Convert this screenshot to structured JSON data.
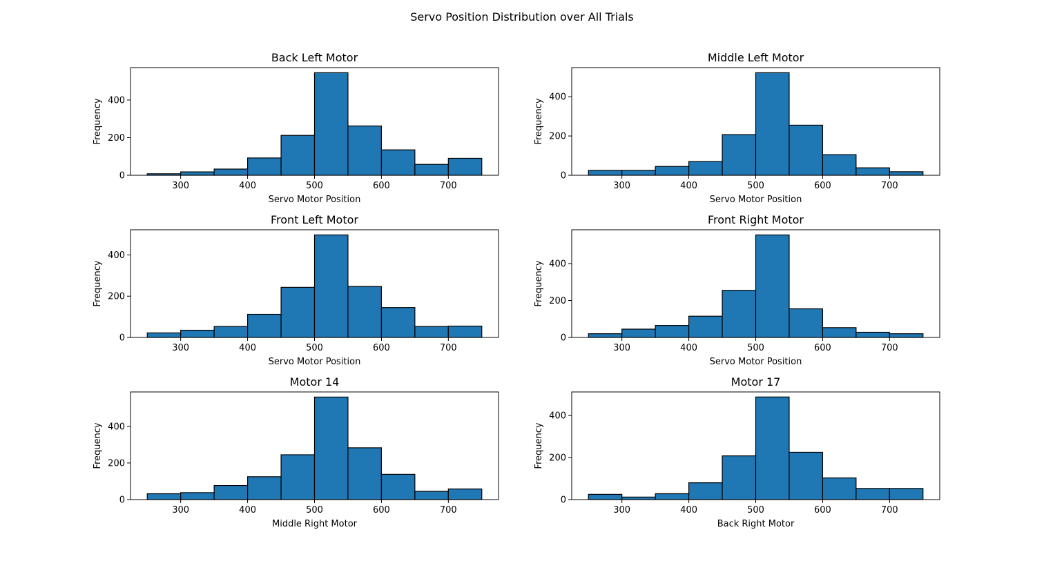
{
  "figure": {
    "title": "Servo Position Distribution over All Trials"
  },
  "chart_data": [
    {
      "type": "bar",
      "title": "Back Left Motor",
      "xlabel": "Servo Motor Position",
      "ylabel": "Frequency",
      "bin_edges": [
        250,
        300,
        350,
        400,
        450,
        500,
        550,
        600,
        650,
        700,
        750
      ],
      "values": [
        8,
        18,
        33,
        92,
        212,
        545,
        262,
        135,
        58,
        90
      ],
      "xlim": [
        225,
        775
      ],
      "ylim": [
        0,
        572
      ],
      "xticks": [
        300,
        400,
        500,
        600,
        700
      ],
      "yticks": [
        0,
        200,
        400
      ],
      "color": "#1f77b4",
      "edgecolor": "#000000"
    },
    {
      "type": "bar",
      "title": "Middle Left Motor",
      "xlabel": "Servo Motor Position",
      "ylabel": "Frequency",
      "bin_edges": [
        250,
        300,
        350,
        400,
        450,
        500,
        550,
        600,
        650,
        700,
        750
      ],
      "values": [
        25,
        25,
        45,
        70,
        207,
        522,
        255,
        105,
        38,
        18
      ],
      "xlim": [
        225,
        775
      ],
      "ylim": [
        0,
        548
      ],
      "xticks": [
        300,
        400,
        500,
        600,
        700
      ],
      "yticks": [
        0,
        200,
        400
      ],
      "color": "#1f77b4",
      "edgecolor": "#000000"
    },
    {
      "type": "bar",
      "title": "Front Left Motor",
      "xlabel": "Servo Motor Position",
      "ylabel": "Frequency",
      "bin_edges": [
        250,
        300,
        350,
        400,
        450,
        500,
        550,
        600,
        650,
        700,
        750
      ],
      "values": [
        22,
        35,
        53,
        112,
        243,
        497,
        247,
        145,
        53,
        55
      ],
      "xlim": [
        225,
        775
      ],
      "ylim": [
        0,
        522
      ],
      "xticks": [
        300,
        400,
        500,
        600,
        700
      ],
      "yticks": [
        0,
        200,
        400
      ],
      "color": "#1f77b4",
      "edgecolor": "#000000"
    },
    {
      "type": "bar",
      "title": "Front Right Motor",
      "xlabel": "Servo Motor Position",
      "ylabel": "Frequency",
      "bin_edges": [
        250,
        300,
        350,
        400,
        450,
        500,
        550,
        600,
        650,
        700,
        750
      ],
      "values": [
        20,
        45,
        65,
        115,
        255,
        555,
        155,
        53,
        28,
        20
      ],
      "xlim": [
        225,
        775
      ],
      "ylim": [
        0,
        583
      ],
      "xticks": [
        300,
        400,
        500,
        600,
        700
      ],
      "yticks": [
        0,
        200,
        400
      ],
      "color": "#1f77b4",
      "edgecolor": "#000000"
    },
    {
      "type": "bar",
      "title": "Motor 14",
      "xlabel": "Middle Right Motor",
      "ylabel": "Frequency",
      "bin_edges": [
        250,
        300,
        350,
        400,
        450,
        500,
        550,
        600,
        650,
        700,
        750
      ],
      "values": [
        32,
        38,
        77,
        125,
        245,
        560,
        283,
        138,
        45,
        58
      ],
      "xlim": [
        225,
        775
      ],
      "ylim": [
        0,
        588
      ],
      "xticks": [
        300,
        400,
        500,
        600,
        700
      ],
      "yticks": [
        0,
        200,
        400
      ],
      "color": "#1f77b4",
      "edgecolor": "#000000"
    },
    {
      "type": "bar",
      "title": "Motor 17",
      "xlabel": "Back Right Motor",
      "ylabel": "Frequency",
      "bin_edges": [
        250,
        300,
        350,
        400,
        450,
        500,
        550,
        600,
        650,
        700,
        750
      ],
      "values": [
        25,
        12,
        28,
        80,
        208,
        488,
        225,
        103,
        53,
        53
      ],
      "xlim": [
        225,
        775
      ],
      "ylim": [
        0,
        512
      ],
      "xticks": [
        300,
        400,
        500,
        600,
        700
      ],
      "yticks": [
        0,
        200,
        400
      ],
      "color": "#1f77b4",
      "edgecolor": "#000000"
    }
  ]
}
